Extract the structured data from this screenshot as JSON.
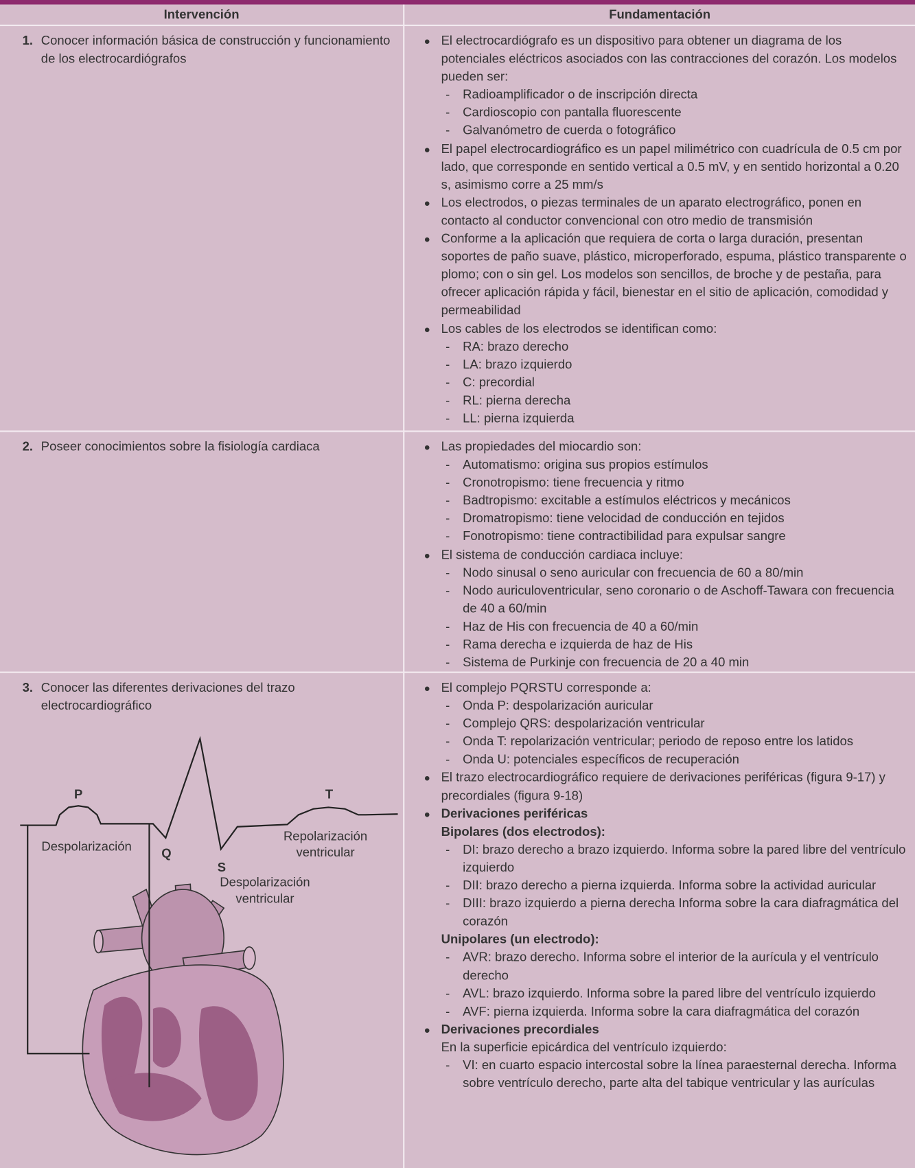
{
  "header": {
    "columns": [
      "Intervención",
      "Fundamentación"
    ]
  },
  "rows": [
    {
      "number": "1.",
      "intervention": "Conocer información básica de construcción y funcionamiento de los electrocardiógrafos",
      "items": [
        {
          "text": "El electrocardiógrafo es un dispositivo para obtener un diagrama de los potenciales eléctricos asociados con las contracciones del corazón. Los modelos pueden ser:",
          "lines": [
            {
              "text": "Radioamplificador o de inscripción directa"
            },
            {
              "text": "Cardioscopio con pantalla fluorescente"
            },
            {
              "text": "Galvanómetro de cuerda o fotográfico"
            }
          ]
        },
        {
          "text": "El papel electrocardiográfico es un papel milimétrico con cuadrícula de 0.5 cm por lado, que corresponde en sentido vertical a 0.5 mV, y en sentido horizontal a 0.20 s, asimismo corre a 25 mm/s"
        },
        {
          "text": "Los electrodos, o piezas terminales de un aparato electrográfico, ponen en contacto al conductor convencional con otro medio de transmisión"
        },
        {
          "text": "Conforme a la aplicación que requiera de corta o larga duración, presentan soportes de paño suave, plástico, microperforado, espuma, plástico transparente o plomo; con o sin gel. Los modelos son sencillos, de broche y de pestaña, para ofrecer aplicación rápida y fácil, bienestar en el sitio de aplicación, comodidad y permeabilidad"
        },
        {
          "text": "Los cables de los electrodos se identifican como:",
          "lines": [
            {
              "text": "RA: brazo derecho"
            },
            {
              "text": "LA: brazo izquierdo"
            },
            {
              "text": "C: precordial"
            },
            {
              "text": "RL: pierna derecha"
            },
            {
              "text": "LL: pierna izquierda"
            }
          ]
        }
      ]
    },
    {
      "number": "2.",
      "intervention": "Poseer conocimientos sobre la fisiología cardiaca",
      "items": [
        {
          "text": "Las propiedades del miocardio son:",
          "lines": [
            {
              "text": "Automatismo: origina sus propios estímulos"
            },
            {
              "text": "Cronotropismo: tiene frecuencia y ritmo"
            },
            {
              "text": "Badtropismo: excitable a estímulos eléctricos y mecánicos"
            },
            {
              "text": "Dromatropismo: tiene velocidad de conducción en tejidos"
            },
            {
              "text": "Fonotropismo: tiene contractibilidad para expulsar sangre"
            }
          ]
        },
        {
          "text": "El sistema de conducción cardiaca incluye:",
          "lines": [
            {
              "text": "Nodo sinusal o seno auricular con frecuencia de 60 a 80/min"
            },
            {
              "text": "Nodo auriculoventricular, seno coronario o de Aschoff-Tawara con frecuencia de 40 a 60/min"
            },
            {
              "text": "Haz de His con frecuencia de 40 a 60/min"
            },
            {
              "text": "Rama derecha e izquierda de haz de His"
            },
            {
              "text": "Sistema de Purkinje con frecuencia de 20 a 40 min"
            }
          ]
        }
      ]
    },
    {
      "number": "3.",
      "intervention": "Conocer las diferentes derivaciones del trazo electrocardiográfico",
      "items": [
        {
          "text": "El complejo PQRSTU corresponde a:",
          "lines": [
            {
              "text": "Onda P: despolarización auricular"
            },
            {
              "text": "Complejo QRS: despolarización ventricular"
            },
            {
              "text": "Onda T: repolarización ventricular; periodo de reposo entre los latidos"
            },
            {
              "text": "Onda U: potenciales específicos de recuperación"
            }
          ]
        },
        {
          "text": "El trazo electrocardiográfico requiere de derivaciones periféricas (figura 9-17) y precordiales (figura 9-18)"
        },
        {
          "text": "Derivaciones periféricas",
          "bold": true,
          "lines": [
            {
              "text": "Bipolares (dos electrodos):",
              "kind": "heading",
              "bold": true
            },
            {
              "text": "DI: brazo derecho a brazo izquierdo. Informa sobre la pared libre del ventrículo izquierdo"
            },
            {
              "text": "DII: brazo derecho a pierna izquierda. Informa sobre la actividad auricular"
            },
            {
              "text": "DIII: brazo izquierdo a pierna derecha Informa sobre la cara diafragmática del corazón"
            },
            {
              "text": "Unipolares (un electrodo):",
              "kind": "heading",
              "bold": true
            },
            {
              "text": "AVR: brazo derecho. Informa sobre el interior de la aurícula y el ventrículo derecho"
            },
            {
              "text": "AVL: brazo izquierdo. Informa sobre la pared libre del ventrículo izquierdo"
            },
            {
              "text": "AVF: pierna izquierda. Informa sobre la cara diafragmática del corazón"
            }
          ]
        },
        {
          "text": "Derivaciones precordiales",
          "bold": true,
          "lines": [
            {
              "text": "En la superficie epicárdica del ventrículo izquierdo:",
              "kind": "heading"
            },
            {
              "text": "VI: en cuarto espacio intercostal sobre la línea paraesternal derecha. Informa sobre ventrículo derecho, parte alta del tabique ventricular y las aurículas"
            }
          ]
        }
      ]
    }
  ],
  "figure": {
    "p": "P",
    "t": "T",
    "q": "Q",
    "s": "S",
    "depolarization": "Despolarización",
    "repolarization": [
      "Repolarización",
      "ventricular"
    ],
    "ventricular_depolarization": [
      "Despolarización",
      "ventricular"
    ]
  }
}
